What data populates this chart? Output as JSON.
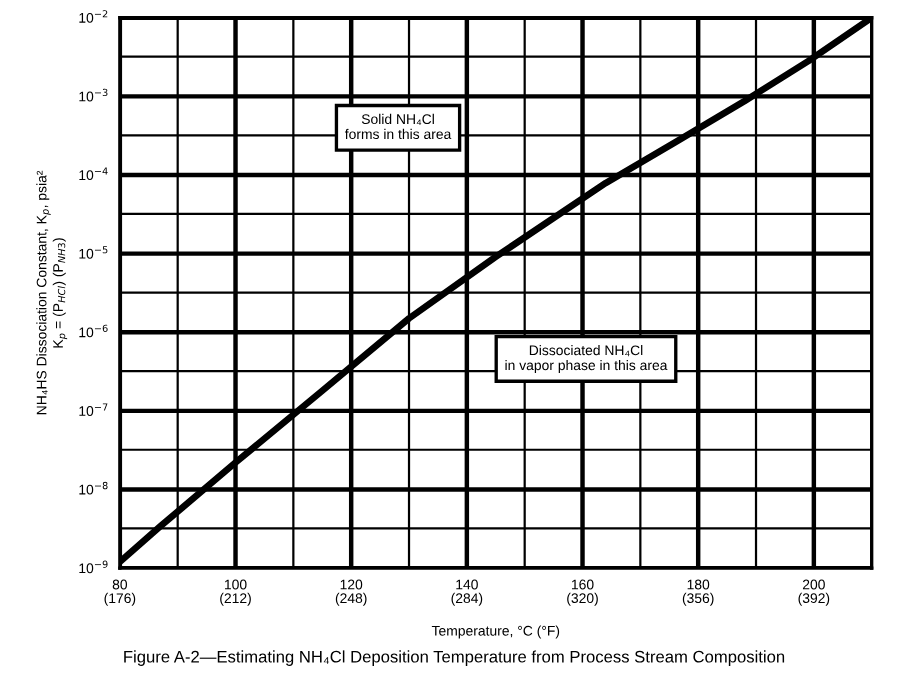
{
  "chart_data": {
    "type": "line",
    "title": "Figure A-2—Estimating NH₄Cl Deposition Temperature from Process Stream Composition",
    "xlabel": "Temperature, °C (°F)",
    "ylabel": "NH₄HS Dissociation Constant, K$_{p}$, psia²\nK$_{p}$ = (P$_{HCl}$) (P$_{NH3}$)",
    "annotations": [
      "Solid NH₄Cl\nforms in this area",
      "Dissociated NH₄Cl\nin vapor phase in this area"
    ],
    "series": [
      {
        "color": "#000000",
        "x": [
          80,
          87,
          100,
          115,
          130,
          145,
          164,
          176,
          188,
          199,
          210
        ],
        "values": [
          1.2e-09,
          3.4e-09,
          2.2e-08,
          1.8e-07,
          1.5e-06,
          9.1e-06,
          7.9e-05,
          0.00026,
          0.00087,
          0.0028,
          0.01
        ]
      }
    ],
    "log": "y",
    "xlim": [
      80,
      210
    ],
    "xticks": [
      80,
      {
        "value": 90,
        "label": null
      },
      100,
      {
        "value": 110,
        "label": null
      },
      120,
      {
        "value": 130,
        "label": null
      },
      140,
      {
        "value": 150,
        "label": null
      },
      160,
      {
        "value": 170,
        "label": null
      },
      180,
      {
        "value": 190,
        "label": null
      },
      200
    ],
    "x2lim": [
      176,
      410
    ],
    "x2ticks": [
      {
        "value": 176,
        "label": "(176)"
      },
      {
        "value": 212,
        "label": "(212)"
      },
      {
        "value": 248,
        "label": "(248)"
      },
      {
        "value": 284,
        "label": "(284)"
      },
      {
        "value": 320,
        "label": "(320)"
      },
      {
        "value": 356,
        "label": "(356)"
      },
      {
        "value": 392,
        "label": "(392)"
      }
    ],
    "ylim": [
      1e-09,
      0.01
    ],
    "yticks": [
      {
        "value": 1e-09,
        "label": "10$^{−9}$"
      },
      {
        "value": 3.2e-09,
        "label": null
      },
      {
        "value": 1e-08,
        "label": "10$^{−8}$"
      },
      {
        "value": 3.2e-08,
        "label": null
      },
      {
        "value": 1e-07,
        "label": "10$^{−7}$"
      },
      {
        "value": 3.2e-07,
        "label": null
      },
      {
        "value": 1e-06,
        "label": "10$^{−6}$"
      },
      {
        "value": 3.2e-06,
        "label": null
      },
      {
        "value": 1e-05,
        "label": "10$^{−5}$"
      },
      {
        "value": 3.2e-05,
        "label": null
      },
      {
        "value": 0.0001,
        "label": "10$^{−4}$"
      },
      {
        "value": 0.00032,
        "label": null
      },
      {
        "value": 0.001,
        "label": "10$^{−3}$"
      },
      {
        "value": 0.0032,
        "label": null
      },
      {
        "value": 0.01,
        "label": "10$^{−2}$"
      }
    ],
    "grid": true,
    "legend": false,
    "marker": "none",
    "line_style": "solid"
  }
}
